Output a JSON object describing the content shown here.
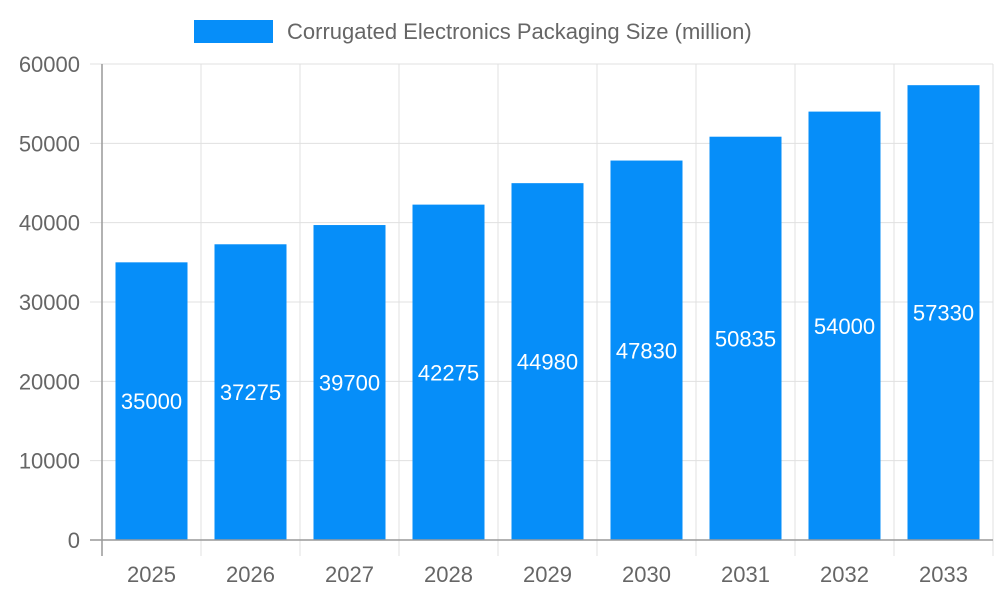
{
  "chart_data": {
    "type": "bar",
    "title": "",
    "xlabel": "",
    "ylabel": "",
    "legend": {
      "position": "top",
      "entries": [
        "Corrugated Electronics Packaging Size (million)"
      ]
    },
    "categories": [
      "2025",
      "2026",
      "2027",
      "2028",
      "2029",
      "2030",
      "2031",
      "2032",
      "2033"
    ],
    "series": [
      {
        "name": "Corrugated Electronics Packaging Size (million)",
        "values": [
          35000,
          37275,
          39700,
          42275,
          44980,
          47830,
          50835,
          54000,
          57330
        ],
        "color": "#068EF9"
      }
    ],
    "ylim": [
      0,
      60000
    ],
    "yticks": [
      "0",
      "10000",
      "20000",
      "30000",
      "40000",
      "50000",
      "60000"
    ],
    "grid": true,
    "data_labels": true
  }
}
